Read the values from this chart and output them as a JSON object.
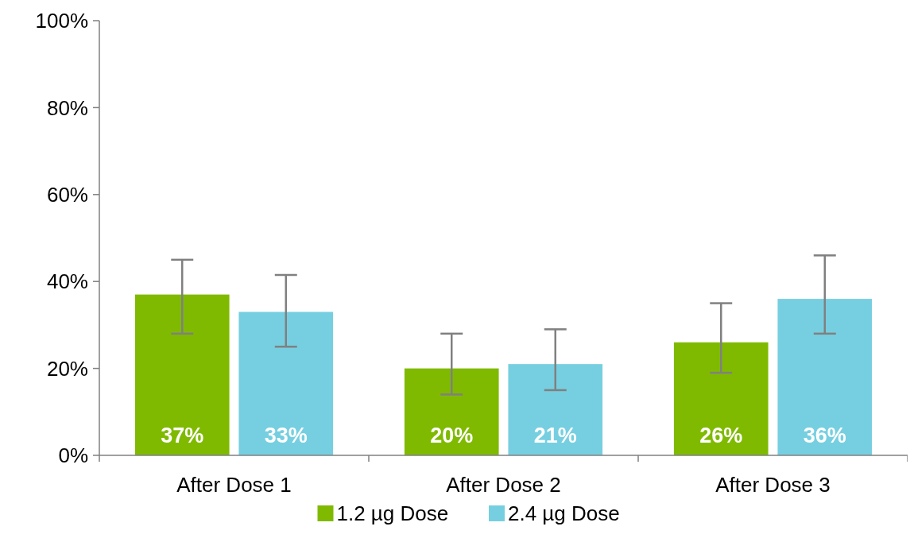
{
  "chart_data": {
    "type": "bar",
    "categories": [
      "After Dose 1",
      "After Dose 2",
      "After Dose 3"
    ],
    "series": [
      {
        "name": "1.2 µg Dose",
        "color": "#7fba00",
        "values": [
          37,
          20,
          26
        ],
        "value_labels": [
          "37%",
          "20%",
          "26%"
        ],
        "errors": [
          [
            28,
            45
          ],
          [
            14,
            28
          ],
          [
            19,
            35
          ]
        ]
      },
      {
        "name": "2.4 µg Dose",
        "color": "#76cfe0",
        "values": [
          33,
          21,
          36
        ],
        "value_labels": [
          "33%",
          "21%",
          "36%"
        ],
        "errors": [
          [
            25,
            41.5
          ],
          [
            15,
            29
          ],
          [
            28,
            46
          ]
        ]
      }
    ],
    "ylim": [
      0,
      100
    ],
    "yticks": [
      {
        "value": 0,
        "label": "0%"
      },
      {
        "value": 20,
        "label": "20%"
      },
      {
        "value": 40,
        "label": "40%"
      },
      {
        "value": 60,
        "label": "60%"
      },
      {
        "value": 80,
        "label": "80%"
      },
      {
        "value": 100,
        "label": "100%"
      }
    ],
    "grid": false,
    "legend": "bottom"
  }
}
